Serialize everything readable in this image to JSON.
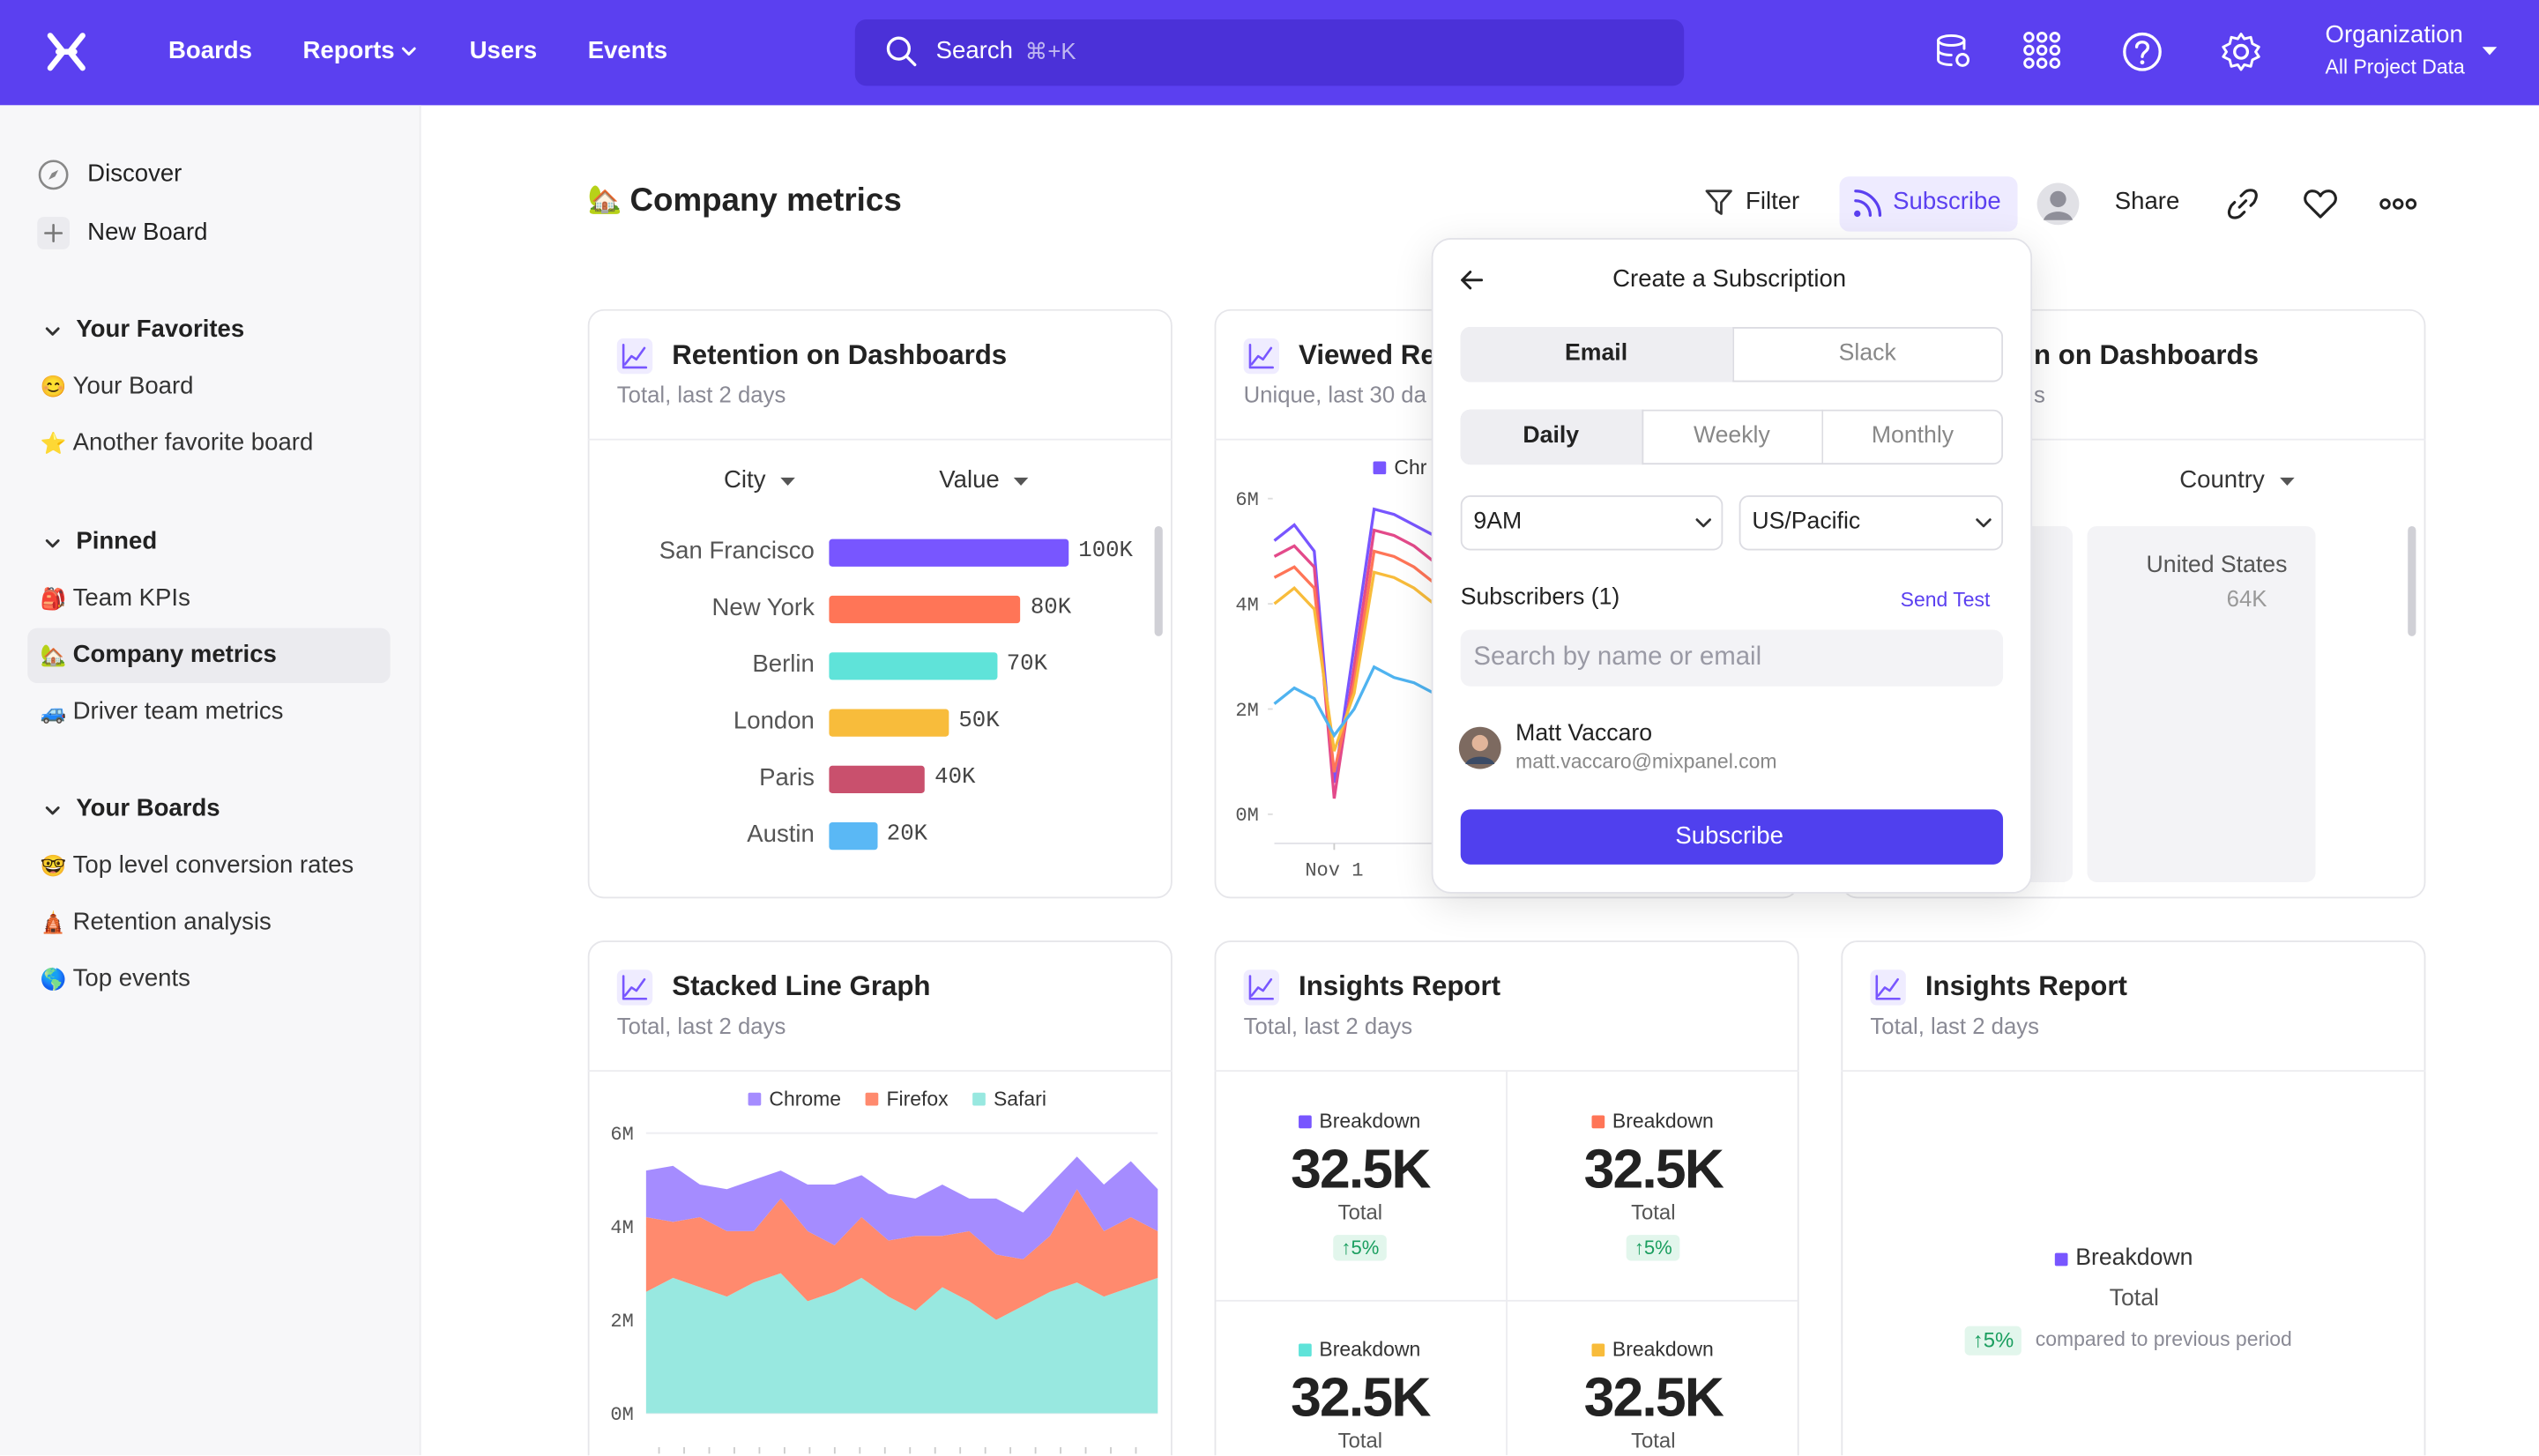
{
  "nav": {
    "menu": [
      "Boards",
      "Reports",
      "Users",
      "Events"
    ],
    "search": "Search",
    "shortcut": "⌘+K",
    "org": "Organization",
    "project": "All Project Data"
  },
  "sidebar": {
    "top": [
      "Discover",
      "New Board"
    ],
    "sections": [
      {
        "title": "Your Favorites",
        "items": [
          {
            "icon": "😊",
            "label": "Your Board"
          },
          {
            "icon": "⭐",
            "label": "Another favorite board"
          }
        ]
      },
      {
        "title": "Pinned",
        "items": [
          {
            "icon": "🎒",
            "label": "Team KPIs"
          },
          {
            "icon": "🏡",
            "label": "Company metrics",
            "active": true
          },
          {
            "icon": "🚙",
            "label": "Driver team metrics"
          }
        ]
      },
      {
        "title": "Your Boards",
        "items": [
          {
            "icon": "🤓",
            "label": "Top level conversion rates"
          },
          {
            "icon": "🛕",
            "label": "Retention analysis"
          },
          {
            "icon": "🌎",
            "label": "Top events"
          }
        ]
      }
    ]
  },
  "header": {
    "icon": "🏡",
    "title": "Company metrics",
    "filter": "Filter",
    "subscribe": "Subscribe",
    "share": "Share"
  },
  "cards": [
    {
      "title": "Retention on Dashboards",
      "subtitle": "Total, last 2 days",
      "chart": {
        "type": "bar",
        "dropdowns": [
          "City",
          "Value"
        ],
        "categories": [
          "San Francisco",
          "New York",
          "Berlin",
          "London",
          "Paris",
          "Austin"
        ],
        "values": [
          100000,
          80000,
          70000,
          50000,
          40000,
          20000
        ],
        "value_labels": [
          "100K",
          "80K",
          "70K",
          "50K",
          "40K",
          "20K"
        ],
        "colors": [
          "#7856ff",
          "#ff7557",
          "#5fe3d9",
          "#f8bc3b",
          "#c9506d",
          "#5ab8f5"
        ]
      }
    },
    {
      "title": "Viewed Re",
      "subtitle": "Unique, last 30 da",
      "chart": {
        "type": "line",
        "x": [
          0,
          1,
          2,
          3,
          4,
          5,
          6,
          7,
          8
        ],
        "xlim": [
          0,
          25
        ],
        "xticks": [
          {
            "value": 3,
            "label": "Nov 1"
          }
        ],
        "ylim": [
          0,
          6000000
        ],
        "yticks": [
          {
            "value": 0,
            "label": "0M"
          },
          {
            "value": 2000000,
            "label": "2M"
          },
          {
            "value": 4000000,
            "label": "4M"
          },
          {
            "value": 6000000,
            "label": "6M"
          }
        ],
        "series": [
          {
            "name": "Chr",
            "color": "#7856ff",
            "values": [
              5200000,
              5500000,
              5000000,
              600000,
              3200000,
              5800000,
              5700000,
              5500000,
              5300000
            ]
          },
          {
            "color": "#e34a8a",
            "values": [
              4900000,
              5100000,
              4700000,
              300000,
              2800000,
              5400000,
              5300000,
              5100000,
              4800000
            ]
          },
          {
            "color": "#ff7557",
            "values": [
              4500000,
              4700000,
              4300000,
              800000,
              2500000,
              5000000,
              4900000,
              4700000,
              4400000
            ]
          },
          {
            "color": "#f8bc3b",
            "values": [
              4000000,
              4300000,
              3900000,
              1200000,
              2300000,
              4600000,
              4500000,
              4300000,
              4000000
            ]
          },
          {
            "color": "#4fb3f0",
            "values": [
              2100000,
              2400000,
              2200000,
              1500000,
              2000000,
              2800000,
              2600000,
              2500000,
              2300000
            ]
          }
        ]
      }
    },
    {
      "title": "n on Dashboards",
      "subtitle": "s",
      "dropdown": "Country",
      "tiles": [
        {
          "label": "United States",
          "value": "64K"
        }
      ]
    },
    {
      "title": "Stacked Line Graph",
      "subtitle": "Total, last 2 days",
      "chart": {
        "type": "area",
        "stacked": true,
        "grid": true,
        "x": [
          0,
          1,
          2,
          3,
          4,
          5,
          6,
          7,
          8,
          9,
          10,
          11,
          12,
          13,
          14,
          15,
          16,
          17,
          18,
          19
        ],
        "xlim": [
          0,
          19
        ],
        "ylim": [
          0,
          6000000
        ],
        "yticks": [
          {
            "value": 0,
            "label": "0M"
          },
          {
            "value": 2000000,
            "label": "2M"
          },
          {
            "value": 4000000,
            "label": "4M"
          },
          {
            "value": 6000000,
            "label": "6M"
          }
        ],
        "series": [
          {
            "name": "Safari",
            "color": "#98e8e0",
            "values": [
              2600000,
              2900000,
              2700000,
              2500000,
              2800000,
              3000000,
              2400000,
              2600000,
              2900000,
              2500000,
              2200000,
              2700000,
              2400000,
              2000000,
              2300000,
              2600000,
              2800000,
              2500000,
              2700000,
              2900000
            ]
          },
          {
            "name": "Firefox",
            "color": "#ff8a6e",
            "values": [
              1600000,
              1200000,
              1500000,
              1400000,
              1100000,
              1600000,
              1500000,
              1000000,
              1300000,
              1200000,
              1600000,
              1100000,
              1500000,
              1400000,
              1000000,
              1200000,
              2000000,
              1400000,
              1500000,
              1000000
            ]
          },
          {
            "name": "Chrome",
            "color": "#a58cff",
            "values": [
              1000000,
              1200000,
              700000,
              900000,
              1100000,
              600000,
              1000000,
              1300000,
              900000,
              1000000,
              800000,
              1100000,
              700000,
              1200000,
              1000000,
              1100000,
              700000,
              1000000,
              1200000,
              900000
            ]
          }
        ],
        "legend_order": [
          2,
          1,
          0
        ]
      }
    },
    {
      "title": "Insights Report",
      "subtitle": "Total, last 2 days",
      "metrics": [
        {
          "label": "Breakdown",
          "color": "#7856ff",
          "value": "32.5K",
          "caption": "Total",
          "change": "↑5%"
        },
        {
          "label": "Breakdown",
          "color": "#ff7557",
          "value": "32.5K",
          "caption": "Total",
          "change": "↑5%"
        },
        {
          "label": "Breakdown",
          "color": "#5fe3d9",
          "value": "32.5K",
          "caption": "Total"
        },
        {
          "label": "Breakdown",
          "color": "#f8bc3b",
          "value": "32.5K",
          "caption": "Total"
        }
      ]
    },
    {
      "title": "Insights Report",
      "subtitle": "Total, last 2 days",
      "metrics": [
        {
          "label": "Breakdown",
          "color": "#7856ff",
          "caption": "Total",
          "change": "↑5%",
          "note": "compared to previous period"
        }
      ]
    }
  ],
  "popup": {
    "title": "Create a Subscription",
    "channels": [
      "Email",
      "Slack"
    ],
    "selected_channel": 0,
    "frequencies": [
      "Daily",
      "Weekly",
      "Monthly"
    ],
    "selected_frequency": 0,
    "time": "9AM",
    "timezone": "US/Pacific",
    "subscribers_label": "Subscribers (1)",
    "send_test": "Send Test",
    "search_placeholder": "Search by name or email",
    "subscribers": [
      {
        "name": "Matt Vaccaro",
        "email": "matt.vaccaro@mixpanel.com"
      }
    ],
    "button": "Subscribe"
  }
}
